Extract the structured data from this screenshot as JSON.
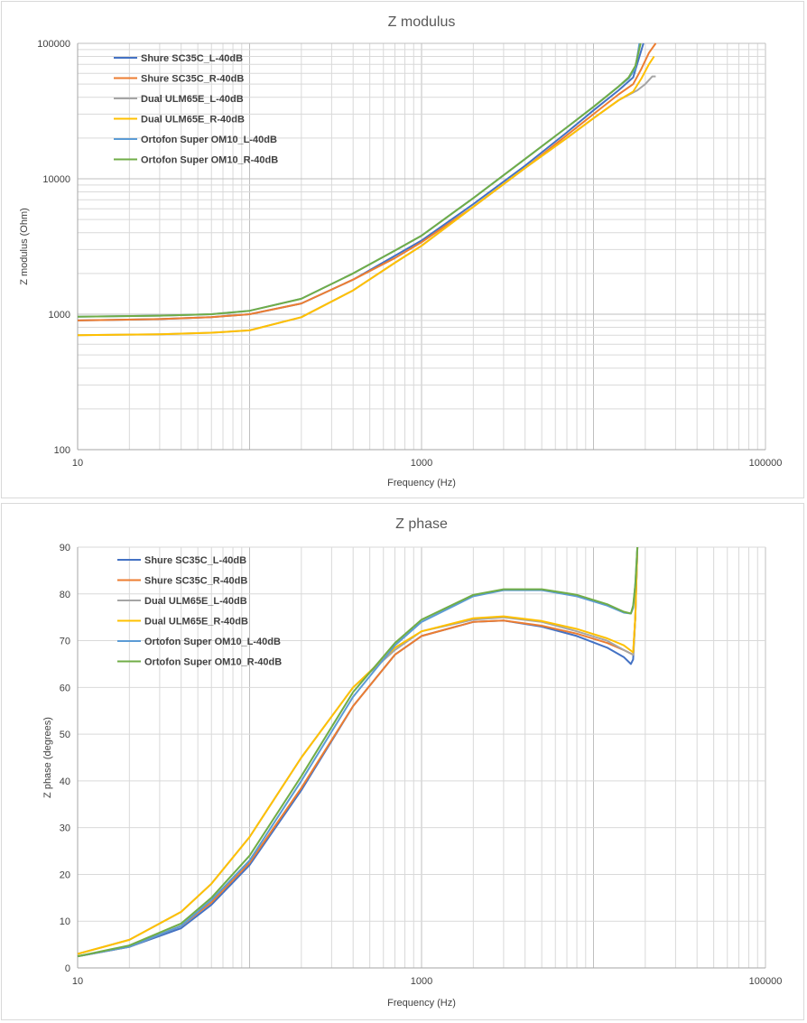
{
  "chart_data": [
    {
      "type": "line",
      "title": "Z modulus",
      "xlabel": "Frequency (Hz)",
      "ylabel": "Z modulus (Ohm)",
      "xscale": "log",
      "yscale": "log",
      "xlim": [
        10,
        100000
      ],
      "ylim": [
        100,
        100000
      ],
      "x_ticks": [
        "10",
        "1000",
        "100000"
      ],
      "y_ticks": [
        "100",
        "1000",
        "10000",
        "100000"
      ],
      "grid": true,
      "legend_position": "top-left",
      "series": [
        {
          "name": "Shure SC35C_L-40dB",
          "color": "#4472C4",
          "points": [
            [
              10,
              900
            ],
            [
              30,
              920
            ],
            [
              60,
              950
            ],
            [
              100,
              1000
            ],
            [
              200,
              1200
            ],
            [
              400,
              1800
            ],
            [
              700,
              2700
            ],
            [
              1000,
              3500
            ],
            [
              2000,
              6500
            ],
            [
              4000,
              12500
            ],
            [
              7000,
              22000
            ],
            [
              10000,
              32000
            ],
            [
              14000,
              45000
            ],
            [
              17000,
              56000
            ],
            [
              18500,
              80000
            ],
            [
              19500,
              100000
            ]
          ]
        },
        {
          "name": "Shure SC35C_R-40dB",
          "color": "#ED7D31",
          "points": [
            [
              10,
              900
            ],
            [
              30,
              920
            ],
            [
              60,
              950
            ],
            [
              100,
              1000
            ],
            [
              200,
              1200
            ],
            [
              400,
              1800
            ],
            [
              700,
              2600
            ],
            [
              1000,
              3400
            ],
            [
              2000,
              6200
            ],
            [
              4000,
              12000
            ],
            [
              7000,
              21000
            ],
            [
              10000,
              30000
            ],
            [
              14000,
              42000
            ],
            [
              17000,
              50000
            ],
            [
              19000,
              65000
            ],
            [
              21000,
              85000
            ],
            [
              23000,
              100000
            ]
          ]
        },
        {
          "name": "Dual ULM65E_L-40dB",
          "color": "#A5A5A5",
          "points": [
            [
              10,
              700
            ],
            [
              30,
              710
            ],
            [
              60,
              730
            ],
            [
              100,
              760
            ],
            [
              200,
              950
            ],
            [
              400,
              1500
            ],
            [
              700,
              2400
            ],
            [
              1000,
              3200
            ],
            [
              2000,
              6200
            ],
            [
              4000,
              12000
            ],
            [
              7000,
              20000
            ],
            [
              10000,
              28000
            ],
            [
              14000,
              38000
            ],
            [
              18000,
              45000
            ],
            [
              20000,
              50000
            ],
            [
              22000,
              57000
            ],
            [
              23000,
              57000
            ]
          ]
        },
        {
          "name": "Dual ULM65E_R-40dB",
          "color": "#FFC000",
          "points": [
            [
              10,
              700
            ],
            [
              30,
              710
            ],
            [
              60,
              730
            ],
            [
              100,
              760
            ],
            [
              200,
              950
            ],
            [
              400,
              1500
            ],
            [
              700,
              2400
            ],
            [
              1000,
              3200
            ],
            [
              2000,
              6200
            ],
            [
              4000,
              12000
            ],
            [
              7000,
              20000
            ],
            [
              10000,
              28000
            ],
            [
              14000,
              38000
            ],
            [
              17000,
              44000
            ],
            [
              19000,
              55000
            ],
            [
              21000,
              70000
            ],
            [
              22500,
              80000
            ]
          ]
        },
        {
          "name": "Ortofon Super OM10_L-40dB",
          "color": "#5B9BD5",
          "points": [
            [
              10,
              960
            ],
            [
              30,
              975
            ],
            [
              60,
              1000
            ],
            [
              100,
              1060
            ],
            [
              200,
              1300
            ],
            [
              400,
              2000
            ],
            [
              700,
              2950
            ],
            [
              1000,
              3800
            ],
            [
              2000,
              7200
            ],
            [
              4000,
              14000
            ],
            [
              7000,
              24000
            ],
            [
              10000,
              34000
            ],
            [
              14000,
              48000
            ],
            [
              16000,
              55000
            ],
            [
              17500,
              65000
            ],
            [
              18500,
              100000
            ]
          ]
        },
        {
          "name": "Ortofon Super OM10_R-40dB",
          "color": "#70AD47",
          "points": [
            [
              10,
              960
            ],
            [
              30,
              975
            ],
            [
              60,
              1000
            ],
            [
              100,
              1060
            ],
            [
              200,
              1300
            ],
            [
              400,
              2000
            ],
            [
              700,
              2950
            ],
            [
              1000,
              3800
            ],
            [
              2000,
              7200
            ],
            [
              4000,
              14000
            ],
            [
              7000,
              24000
            ],
            [
              10000,
              34000
            ],
            [
              14000,
              48000
            ],
            [
              16000,
              56000
            ],
            [
              17500,
              68000
            ],
            [
              18800,
              100000
            ]
          ]
        }
      ]
    },
    {
      "type": "line",
      "title": "Z phase",
      "xlabel": "Frequency (Hz)",
      "ylabel": "Z phase (degrees)",
      "xscale": "log",
      "yscale": "linear",
      "xlim": [
        10,
        100000
      ],
      "ylim": [
        0,
        90
      ],
      "x_ticks": [
        "10",
        "1000",
        "100000"
      ],
      "y_ticks": [
        "0",
        "10",
        "20",
        "30",
        "40",
        "50",
        "60",
        "70",
        "80",
        "90"
      ],
      "grid": true,
      "legend_position": "top-left",
      "series": [
        {
          "name": "Shure SC35C_L-40dB",
          "color": "#4472C4",
          "points": [
            [
              10,
              2.5
            ],
            [
              20,
              4.5
            ],
            [
              40,
              8.5
            ],
            [
              60,
              13.5
            ],
            [
              100,
              22
            ],
            [
              200,
              38
            ],
            [
              400,
              56
            ],
            [
              700,
              67
            ],
            [
              1000,
              71
            ],
            [
              2000,
              74
            ],
            [
              3000,
              74.3
            ],
            [
              5000,
              73
            ],
            [
              8000,
              71
            ],
            [
              12000,
              68.5
            ],
            [
              15000,
              66.5
            ],
            [
              16500,
              65
            ],
            [
              17000,
              66
            ],
            [
              17500,
              75
            ],
            [
              18000,
              90
            ]
          ]
        },
        {
          "name": "Shure SC35C_R-40dB",
          "color": "#ED7D31",
          "points": [
            [
              10,
              2.5
            ],
            [
              20,
              4.5
            ],
            [
              40,
              9
            ],
            [
              60,
              14
            ],
            [
              100,
              22.5
            ],
            [
              200,
              38.5
            ],
            [
              400,
              56
            ],
            [
              700,
              67
            ],
            [
              1000,
              71
            ],
            [
              2000,
              74
            ],
            [
              3000,
              74.3
            ],
            [
              5000,
              73.2
            ],
            [
              8000,
              71.5
            ],
            [
              12000,
              69.5
            ],
            [
              15000,
              68
            ],
            [
              17000,
              67
            ],
            [
              17500,
              75
            ],
            [
              18000,
              90
            ]
          ]
        },
        {
          "name": "Dual ULM65E_L-40dB",
          "color": "#A5A5A5",
          "points": [
            [
              10,
              3
            ],
            [
              20,
              6
            ],
            [
              40,
              12
            ],
            [
              60,
              18
            ],
            [
              100,
              28
            ],
            [
              200,
              45
            ],
            [
              400,
              60
            ],
            [
              700,
              68
            ],
            [
              1000,
              72
            ],
            [
              2000,
              74.5
            ],
            [
              3000,
              75
            ],
            [
              5000,
              74
            ],
            [
              8000,
              72
            ],
            [
              12000,
              70
            ],
            [
              15000,
              68
            ],
            [
              17000,
              67
            ],
            [
              17500,
              75
            ],
            [
              18000,
              90
            ]
          ]
        },
        {
          "name": "Dual ULM65E_R-40dB",
          "color": "#FFC000",
          "points": [
            [
              10,
              3
            ],
            [
              20,
              6
            ],
            [
              40,
              12
            ],
            [
              60,
              18
            ],
            [
              100,
              28
            ],
            [
              200,
              45
            ],
            [
              400,
              60
            ],
            [
              700,
              68.5
            ],
            [
              1000,
              72
            ],
            [
              2000,
              74.8
            ],
            [
              3000,
              75.2
            ],
            [
              5000,
              74.2
            ],
            [
              8000,
              72.5
            ],
            [
              12000,
              70.5
            ],
            [
              15000,
              69
            ],
            [
              17000,
              67.5
            ],
            [
              17500,
              75
            ],
            [
              18000,
              90
            ]
          ]
        },
        {
          "name": "Ortofon Super OM10_L-40dB",
          "color": "#5B9BD5",
          "points": [
            [
              10,
              2.5
            ],
            [
              20,
              4.5
            ],
            [
              40,
              9
            ],
            [
              60,
              14.5
            ],
            [
              100,
              23
            ],
            [
              200,
              40
            ],
            [
              400,
              58
            ],
            [
              700,
              69
            ],
            [
              1000,
              74
            ],
            [
              2000,
              79.5
            ],
            [
              3000,
              80.8
            ],
            [
              5000,
              80.8
            ],
            [
              8000,
              79.5
            ],
            [
              12000,
              77.5
            ],
            [
              15000,
              76
            ],
            [
              16500,
              75.8
            ],
            [
              17000,
              77
            ],
            [
              17500,
              82
            ],
            [
              18000,
              90
            ]
          ]
        },
        {
          "name": "Ortofon Super OM10_R-40dB",
          "color": "#70AD47",
          "points": [
            [
              10,
              2.5
            ],
            [
              20,
              4.8
            ],
            [
              40,
              9.5
            ],
            [
              60,
              15
            ],
            [
              100,
              24
            ],
            [
              200,
              41
            ],
            [
              400,
              59
            ],
            [
              700,
              69.5
            ],
            [
              1000,
              74.5
            ],
            [
              2000,
              79.8
            ],
            [
              3000,
              81
            ],
            [
              5000,
              81
            ],
            [
              8000,
              79.8
            ],
            [
              12000,
              77.8
            ],
            [
              15000,
              76.2
            ],
            [
              16500,
              75.8
            ],
            [
              17000,
              77.5
            ],
            [
              17500,
              82
            ],
            [
              18000,
              90
            ]
          ]
        }
      ]
    }
  ]
}
